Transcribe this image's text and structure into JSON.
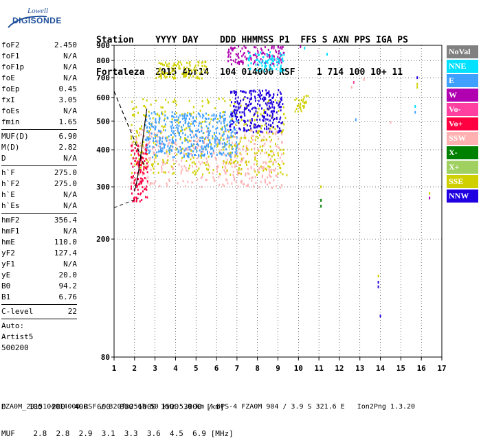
{
  "logo": {
    "line1": "Lowell",
    "line2": "DIGISONDE"
  },
  "header": {
    "line1": "Station    YYYY DAY    DDD HHMMSS P1  FFS S AXN PPS IGA PS",
    "line2": "Fortaleza  2015 Abr14  104 014000 RSF    1 714 100 10+ 11"
  },
  "params_block1": [
    {
      "name": "foF2",
      "value": "2.450"
    },
    {
      "name": "foF1",
      "value": "N/A"
    },
    {
      "name": "foF1p",
      "value": "N/A"
    },
    {
      "name": "foE",
      "value": "N/A"
    },
    {
      "name": "foEp",
      "value": "0.45"
    },
    {
      "name": "fxI",
      "value": "3.05"
    },
    {
      "name": "foEs",
      "value": "N/A"
    },
    {
      "name": "fmin",
      "value": "1.65"
    }
  ],
  "params_block2": [
    {
      "name": "MUF(D)",
      "value": "6.90"
    },
    {
      "name": "M(D)",
      "value": "2.82"
    },
    {
      "name": "D",
      "value": "N/A"
    }
  ],
  "params_block3": [
    {
      "name": "h`F",
      "value": "275.0"
    },
    {
      "name": "h`F2",
      "value": "275.0"
    },
    {
      "name": "h`E",
      "value": "N/A"
    },
    {
      "name": "h`Es",
      "value": "N/A"
    }
  ],
  "params_block4": [
    {
      "name": "hmF2",
      "value": "356.4"
    },
    {
      "name": "hmF1",
      "value": "N/A"
    },
    {
      "name": "hmE",
      "value": "110.0"
    },
    {
      "name": "yF2",
      "value": "127.4"
    },
    {
      "name": "yF1",
      "value": "N/A"
    },
    {
      "name": "yE",
      "value": "20.0"
    },
    {
      "name": "B0",
      "value": "94.2"
    },
    {
      "name": "B1",
      "value": "6.76"
    }
  ],
  "params_block5": [
    {
      "name": "C-level",
      "value": "22"
    }
  ],
  "auto": {
    "l1": "Auto:",
    "l2": "Artist5",
    "l3": "500200"
  },
  "legend": [
    {
      "label": "NoVal",
      "color": "#808080"
    },
    {
      "label": "NNE",
      "color": "#00e0ff"
    },
    {
      "label": "E",
      "color": "#40a0ff"
    },
    {
      "label": "W",
      "color": "#b000b0"
    },
    {
      "label": "Vo-",
      "color": "#ff40a0"
    },
    {
      "label": "Vo+",
      "color": "#ff0040"
    },
    {
      "label": "SSW",
      "color": "#ffb0b0"
    },
    {
      "label": "X-",
      "color": "#008000"
    },
    {
      "label": "X+",
      "color": "#a0d060"
    },
    {
      "label": "SSE",
      "color": "#d0d000"
    },
    {
      "label": "NNW",
      "color": "#2000e0"
    }
  ],
  "bottom": {
    "d_line": "D     100  200  400  600  800 1000 1500 3000 [km]",
    "muf_line": "MUF    2.8  2.8  2.9  3.1  3.3  3.6  4.5  6.9 [MHz]"
  },
  "footer": "FZA0M_2015104014000.RSF / 320fx256h 50 kHz 5.0 km / DPS-4 FZA0M 904 / 3.9 S 321.6 E   Ion2Png 1.3.20",
  "chart_data": {
    "type": "scatter",
    "xlim": [
      1,
      17
    ],
    "ylim": [
      80,
      900
    ],
    "y_scale": "log",
    "xticks": [
      "1",
      "2",
      "3",
      "4",
      "5",
      "6",
      "7",
      "8",
      "9",
      "10",
      "11",
      "12",
      "13",
      "14",
      "15",
      "16",
      "17"
    ],
    "yticks": [
      "80",
      "200",
      "300",
      "400",
      "500",
      "600",
      "700",
      "800",
      "900"
    ],
    "grid": true,
    "clusters": [
      {
        "name": "SSW",
        "x": [
          1.8,
          9.2
        ],
        "y": [
          300,
          470
        ]
      },
      {
        "name": "SSE",
        "x": [
          1.8,
          9.4
        ],
        "y": [
          330,
          600
        ]
      },
      {
        "name": "E",
        "x": [
          2.5,
          7.0
        ],
        "y": [
          380,
          540
        ]
      },
      {
        "name": "NNW",
        "x": [
          6.6,
          9.2
        ],
        "y": [
          460,
          640
        ]
      },
      {
        "name": "W",
        "x": [
          6.5,
          9.3
        ],
        "y": [
          780,
          900
        ]
      },
      {
        "name": "NNE",
        "x": [
          7.5,
          9.3
        ],
        "y": [
          740,
          860
        ]
      },
      {
        "name": "SSE",
        "x": [
          3.0,
          5.5
        ],
        "y": [
          700,
          800
        ]
      },
      {
        "name": "SSE",
        "x": [
          9.8,
          10.5
        ],
        "y": [
          540,
          620
        ]
      },
      {
        "name": "Vo+",
        "x": [
          1.8,
          2.6
        ],
        "y": [
          270,
          420
        ]
      }
    ],
    "traces": [
      {
        "name": "trace-solid",
        "x": [
          2.0,
          2.1,
          2.2,
          2.3,
          2.4,
          2.5,
          2.6
        ],
        "y": [
          290,
          310,
          340,
          380,
          430,
          490,
          550
        ]
      },
      {
        "name": "trace-dashed",
        "x": [
          1.0,
          1.6,
          2.0,
          2.3,
          2.5
        ],
        "y": [
          630,
          500,
          430,
          380,
          350
        ]
      }
    ],
    "sparse_points": [
      {
        "x": 10.1,
        "y": 890,
        "c": "W"
      },
      {
        "x": 10.3,
        "y": 880,
        "c": "NNE"
      },
      {
        "x": 11.4,
        "y": 840,
        "c": "NNE"
      },
      {
        "x": 12.6,
        "y": 650,
        "c": "SSW"
      },
      {
        "x": 12.7,
        "y": 675,
        "c": "Vo-"
      },
      {
        "x": 13.2,
        "y": 690,
        "c": "SSW"
      },
      {
        "x": 11.1,
        "y": 300,
        "c": "SSE"
      },
      {
        "x": 11.1,
        "y": 270,
        "c": "X-"
      },
      {
        "x": 11.1,
        "y": 258,
        "c": "X-"
      },
      {
        "x": 12.8,
        "y": 505,
        "c": "E"
      },
      {
        "x": 14.5,
        "y": 495,
        "c": "SSW"
      },
      {
        "x": 13.9,
        "y": 150,
        "c": "SSE"
      },
      {
        "x": 13.9,
        "y": 143,
        "c": "NNW"
      },
      {
        "x": 13.9,
        "y": 138,
        "c": "NNW"
      },
      {
        "x": 14.0,
        "y": 110,
        "c": "NNW"
      },
      {
        "x": 15.8,
        "y": 700,
        "c": "NNW"
      },
      {
        "x": 15.8,
        "y": 665,
        "c": "SSE"
      },
      {
        "x": 15.8,
        "y": 650,
        "c": "SSE"
      },
      {
        "x": 15.7,
        "y": 560,
        "c": "NNE"
      },
      {
        "x": 15.7,
        "y": 535,
        "c": "E"
      },
      {
        "x": 16.4,
        "y": 285,
        "c": "SSE"
      },
      {
        "x": 16.4,
        "y": 275,
        "c": "W"
      }
    ]
  }
}
